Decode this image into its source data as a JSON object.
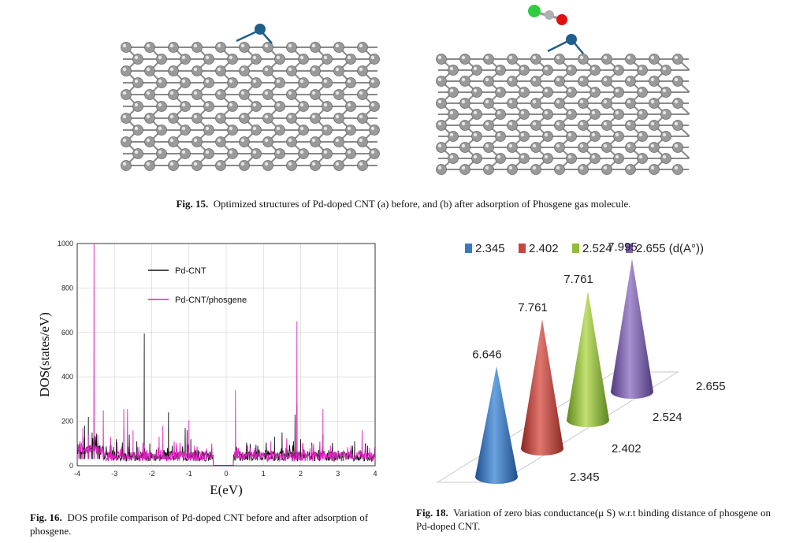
{
  "fig15": {
    "label": "Fig. 15.",
    "text": "Optimized structures of Pd-doped CNT (a) before, and (b) after adsorption of Phosgene gas molecule.",
    "colors": {
      "carbon": "#9a9a9a",
      "pd": "#1f5f8b",
      "chlorine": "#2ecc40",
      "oxygen": "#e01010"
    }
  },
  "fig16": {
    "label": "Fig. 16.",
    "text": "DOS profile comparison of Pd-doped CNT before and after adsorption of phosgene."
  },
  "fig18": {
    "label": "Fig. 18.",
    "text": "Variation of zero bias conductance(μ S) w.r.t binding distance of phosgene on Pd-doped CNT."
  },
  "chart_data": [
    {
      "type": "line",
      "xlabel": "E(eV)",
      "ylabel": "DOS(states/eV)",
      "xlim": [
        -4,
        4
      ],
      "ylim": [
        0,
        1000
      ],
      "xticks": [
        "-4",
        "-3",
        "-2",
        "-1",
        "0",
        "1",
        "2",
        "3",
        "4"
      ],
      "yticks": [
        "0",
        "200",
        "400",
        "600",
        "800",
        "1000"
      ],
      "grid": true,
      "legend_position": "upper-left",
      "series": [
        {
          "name": "Pd-CNT",
          "color": "#111111",
          "peaks": [
            [
              -3.9,
              80
            ],
            [
              -3.8,
              180
            ],
            [
              -3.7,
              220
            ],
            [
              -3.6,
              150
            ],
            [
              -3.4,
              90
            ],
            [
              -2.95,
              120
            ],
            [
              -2.75,
              170
            ],
            [
              -2.6,
              140
            ],
            [
              -2.4,
              110
            ],
            [
              -2.2,
              595
            ],
            [
              -2.05,
              100
            ],
            [
              -1.55,
              240
            ],
            [
              -1.45,
              90
            ],
            [
              -1.1,
              170
            ],
            [
              -1.05,
              160
            ],
            [
              -0.95,
              120
            ],
            [
              -0.6,
              60
            ],
            [
              0.5,
              40
            ],
            [
              0.8,
              60
            ],
            [
              1.05,
              70
            ],
            [
              1.3,
              130
            ],
            [
              1.5,
              150
            ],
            [
              1.65,
              70
            ],
            [
              1.85,
              230
            ],
            [
              1.9,
              280
            ],
            [
              2.0,
              120
            ],
            [
              2.3,
              90
            ],
            [
              2.6,
              140
            ],
            [
              2.75,
              70
            ],
            [
              3.1,
              60
            ],
            [
              3.45,
              110
            ],
            [
              3.6,
              70
            ],
            [
              3.8,
              90
            ]
          ]
        },
        {
          "name": "Pd-CNT/phosgene",
          "color": "#e020c0",
          "peaks": [
            [
              -3.95,
              60
            ],
            [
              -3.85,
              170
            ],
            [
              -3.7,
              140
            ],
            [
              -3.55,
              1000
            ],
            [
              -3.45,
              140
            ],
            [
              -3.3,
              250
            ],
            [
              -3.1,
              130
            ],
            [
              -2.75,
              255
            ],
            [
              -2.65,
              255
            ],
            [
              -2.5,
              160
            ],
            [
              -2.2,
              90
            ],
            [
              -1.8,
              130
            ],
            [
              -1.7,
              180
            ],
            [
              -1.45,
              60
            ],
            [
              -1.0,
              205
            ],
            [
              -0.85,
              90
            ],
            [
              -0.6,
              60
            ],
            [
              0.25,
              340
            ],
            [
              0.45,
              60
            ],
            [
              0.75,
              70
            ],
            [
              1.2,
              110
            ],
            [
              1.6,
              80
            ],
            [
              1.9,
              650
            ],
            [
              2.05,
              100
            ],
            [
              2.25,
              80
            ],
            [
              2.6,
              255
            ],
            [
              2.8,
              90
            ],
            [
              3.15,
              70
            ],
            [
              3.35,
              90
            ],
            [
              3.65,
              160
            ],
            [
              3.85,
              80
            ]
          ]
        }
      ]
    },
    {
      "type": "bar",
      "style": "3d-cone",
      "categories": [
        "2.345",
        "2.402",
        "2.524",
        "2.655"
      ],
      "values": [
        6.646,
        7.761,
        7.761,
        7.995
      ],
      "legend_suffix": "(d(A°))",
      "colors": [
        "#3b78c2",
        "#c8443d",
        "#93bd3a",
        "#7f62ac"
      ],
      "legend_position": "top"
    }
  ]
}
